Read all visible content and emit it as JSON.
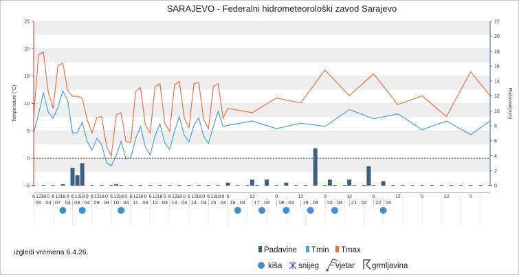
{
  "title": "SARAJEVO - Federalni hidrometeorološki zavod Sarajevo",
  "footnote": "izgledi vremena 6.4.26.",
  "legend": {
    "padavine": "Padavine",
    "tmin": "Tmin",
    "tmax": "Tmax",
    "kisa": "kiša",
    "snijeg": "snijeg",
    "vjetar": "vjetar",
    "grmljavina": "grmljavina"
  },
  "chart_data": {
    "type": "line",
    "title": "SARAJEVO - Federalni hidrometeorološki zavod Sarajevo",
    "y_left_label": "Temperature (°C)",
    "y_right_label": "Padavine(mm)",
    "y_left_range": [
      -5,
      25
    ],
    "y_right_range": [
      0,
      22
    ],
    "y_left_ticks": [
      "-5",
      "0",
      "5",
      "10",
      "15",
      "20",
      "25"
    ],
    "y_right_ticks": [
      "0",
      "2",
      "4",
      "6",
      "8",
      "10",
      "12",
      "14",
      "16",
      "18",
      "20",
      "22"
    ],
    "grid": true,
    "colors": {
      "tmax": "#e8704a",
      "tmin": "#4a9fd0",
      "padavine": "#3f5f82",
      "kisa": "#3a8fd8",
      "axis": "#d03030",
      "band": "#eeeeee"
    },
    "x_range": [
      0,
      94
    ],
    "hourly_segment": {
      "start_index": 0,
      "end_index": 56,
      "note_step_hours": 6
    },
    "day_labels": [
      {
        "label": "06 . 04",
        "x": 2
      },
      {
        "label": "07 . 04",
        "x": 6
      },
      {
        "label": "08 . 04",
        "x": 10
      },
      {
        "label": "09 . 04",
        "x": 14
      },
      {
        "label": "10 . 04",
        "x": 18
      },
      {
        "label": "11 . 04",
        "x": 22
      },
      {
        "label": "12 . 04",
        "x": 26
      },
      {
        "label": "13 . 04",
        "x": 30
      },
      {
        "label": "14 . 04",
        "x": 34
      },
      {
        "label": "15 . 04",
        "x": 38
      },
      {
        "label": "16 . 04",
        "x": 42
      },
      {
        "label": "17 . 04",
        "x": 47
      },
      {
        "label": "18 . 04",
        "x": 52
      },
      {
        "label": "19 . 04",
        "x": 57
      },
      {
        "label": "20 . 04",
        "x": 62
      },
      {
        "label": "21 . 04",
        "x": 67
      },
      {
        "label": "22 . 04",
        "x": 72
      }
    ],
    "tmax": [
      [
        0,
        7.8
      ],
      [
        1,
        18.9
      ],
      [
        2,
        19.4
      ],
      [
        3,
        12.1
      ],
      [
        4,
        9.1
      ],
      [
        5,
        16.9
      ],
      [
        6,
        17.4
      ],
      [
        7,
        12.4
      ],
      [
        8,
        11.3
      ],
      [
        9,
        11.3
      ],
      [
        10,
        11.0
      ],
      [
        11,
        7.1
      ],
      [
        12,
        4.6
      ],
      [
        13,
        7.4
      ],
      [
        14,
        7.6
      ],
      [
        15,
        2.2
      ],
      [
        16,
        0.4
      ],
      [
        17,
        7.9
      ],
      [
        18,
        8.3
      ],
      [
        19,
        3.1
      ],
      [
        20,
        2.9
      ],
      [
        21,
        12.2
      ],
      [
        22,
        12.9
      ],
      [
        23,
        6.1
      ],
      [
        24,
        4.6
      ],
      [
        25,
        13.1
      ],
      [
        26,
        13.6
      ],
      [
        27,
        6.4
      ],
      [
        28,
        4.9
      ],
      [
        29,
        13.4
      ],
      [
        30,
        14.0
      ],
      [
        31,
        7.4
      ],
      [
        32,
        5.6
      ],
      [
        33,
        13.6
      ],
      [
        34,
        13.8
      ],
      [
        35,
        7.1
      ],
      [
        36,
        5.4
      ],
      [
        37,
        13.1
      ],
      [
        38,
        13.6
      ],
      [
        39,
        7.3
      ],
      [
        40,
        9.1
      ],
      [
        45,
        8.3
      ],
      [
        50,
        11.0
      ],
      [
        55,
        10.1
      ],
      [
        60,
        16.1
      ],
      [
        65,
        11.4
      ],
      [
        70,
        15.4
      ],
      [
        75,
        9.8
      ],
      [
        80,
        11.4
      ],
      [
        85,
        7.6
      ],
      [
        90,
        15.8
      ],
      [
        94,
        11.4
      ]
    ],
    "tmin": [
      [
        0,
        4.6
      ],
      [
        1,
        8.0
      ],
      [
        2,
        12.0
      ],
      [
        3,
        8.4
      ],
      [
        4,
        7.3
      ],
      [
        5,
        9.3
      ],
      [
        6,
        12.3
      ],
      [
        7,
        10.6
      ],
      [
        8,
        4.6
      ],
      [
        9,
        4.7
      ],
      [
        10,
        6.6
      ],
      [
        11,
        3.1
      ],
      [
        12,
        1.5
      ],
      [
        13,
        3.6
      ],
      [
        14,
        2.5
      ],
      [
        15,
        -0.8
      ],
      [
        16,
        -1.4
      ],
      [
        17,
        0.5
      ],
      [
        18,
        3.1
      ],
      [
        19,
        -0.1
      ],
      [
        20,
        0.1
      ],
      [
        21,
        3.6
      ],
      [
        22,
        5.8
      ],
      [
        23,
        2.0
      ],
      [
        24,
        0.6
      ],
      [
        25,
        4.1
      ],
      [
        26,
        6.3
      ],
      [
        27,
        2.8
      ],
      [
        28,
        1.6
      ],
      [
        29,
        4.9
      ],
      [
        30,
        7.6
      ],
      [
        31,
        4.2
      ],
      [
        32,
        3.0
      ],
      [
        33,
        6.0
      ],
      [
        34,
        7.4
      ],
      [
        35,
        4.0
      ],
      [
        36,
        2.7
      ],
      [
        37,
        5.8
      ],
      [
        38,
        8.6
      ],
      [
        39,
        5.8
      ],
      [
        40,
        6.0
      ],
      [
        45,
        6.8
      ],
      [
        50,
        5.4
      ],
      [
        55,
        6.4
      ],
      [
        60,
        5.8
      ],
      [
        65,
        8.9
      ],
      [
        70,
        7.2
      ],
      [
        75,
        8.1
      ],
      [
        80,
        5.2
      ],
      [
        85,
        6.8
      ],
      [
        90,
        4.3
      ],
      [
        94,
        6.8
      ],
      [
        94,
        7.1
      ]
    ],
    "padavine": [
      [
        6,
        0.2
      ],
      [
        8,
        2.4
      ],
      [
        9,
        1.4
      ],
      [
        10,
        3.0
      ],
      [
        17,
        0.2
      ],
      [
        40,
        0.4
      ],
      [
        45,
        0.8
      ],
      [
        48,
        0.8
      ],
      [
        52,
        0.4
      ],
      [
        58,
        5.0
      ],
      [
        61,
        0.8
      ],
      [
        65,
        0.8
      ],
      [
        69,
        2.6
      ],
      [
        72,
        0.6
      ]
    ],
    "kisa_days": [
      {
        "x": 6
      },
      {
        "x": 10
      },
      {
        "x": 18
      },
      {
        "x": 42
      },
      {
        "x": 47
      },
      {
        "x": 52
      },
      {
        "x": 57
      },
      {
        "x": 62
      },
      {
        "x": 72
      }
    ]
  }
}
